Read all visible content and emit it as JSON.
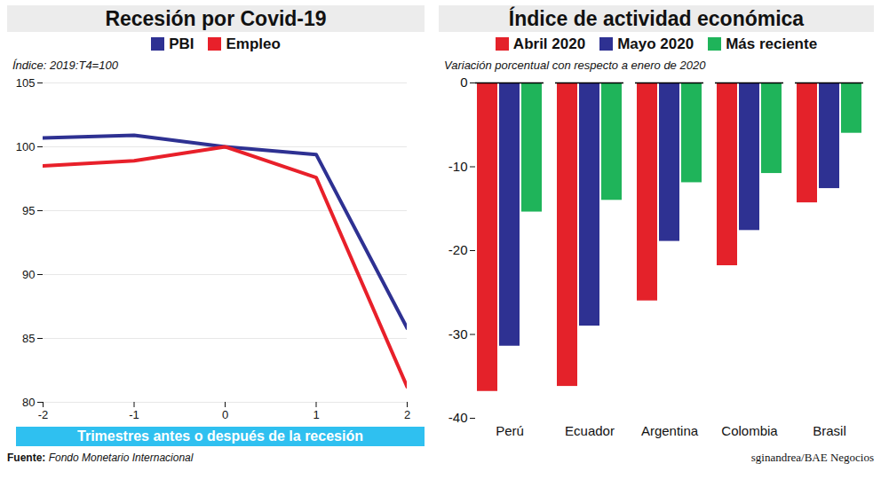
{
  "chart_data": [
    {
      "type": "line",
      "title": "Recesión por Covid-19",
      "subtitle": "Índice: 2019:T4=100",
      "x_label": "Trimestres antes o después de la recesión",
      "x": [
        -2,
        -1,
        0,
        1,
        2
      ],
      "series": [
        {
          "name": "PBI",
          "color": "#2e3192",
          "values": [
            100.7,
            100.9,
            100.0,
            99.4,
            85.8
          ]
        },
        {
          "name": "Empleo",
          "color": "#e8202a",
          "values": [
            98.5,
            98.9,
            100.0,
            97.6,
            81.2
          ]
        }
      ],
      "xlim": [
        -2,
        2
      ],
      "xticks": [
        -2,
        -1,
        0,
        1,
        2
      ],
      "ylim": [
        80,
        105
      ],
      "yticks": [
        80,
        85,
        90,
        95,
        100,
        105
      ],
      "grid": true,
      "legend": "top"
    },
    {
      "type": "bar",
      "title": "Índice de actividad económica",
      "subtitle": "Variación porcentual con respecto a enero de 2020",
      "categories": [
        "Perú",
        "Ecuador",
        "Argentina",
        "Colombia",
        "Brasil"
      ],
      "series": [
        {
          "name": "Abril 2020",
          "color": "#e4222a",
          "values": [
            -36.8,
            -36.2,
            -26.0,
            -21.8,
            -14.3
          ]
        },
        {
          "name": "Mayo 2020",
          "color": "#2e3192",
          "values": [
            -31.4,
            -29.0,
            -18.9,
            -17.6,
            -12.6
          ]
        },
        {
          "name": "Más reciente",
          "color": "#1fb45a",
          "values": [
            -15.4,
            -14.0,
            -11.9,
            -10.8,
            -6.0
          ]
        }
      ],
      "ylim": [
        -40,
        0
      ],
      "yticks": [
        0,
        -10,
        -20,
        -30,
        -40
      ],
      "grid": false,
      "legend": "top"
    }
  ],
  "footer": {
    "source_label": "Fuente:",
    "source": "Fondo Monetario Internacional",
    "credit": "sginandrea/BAE Negocios"
  }
}
